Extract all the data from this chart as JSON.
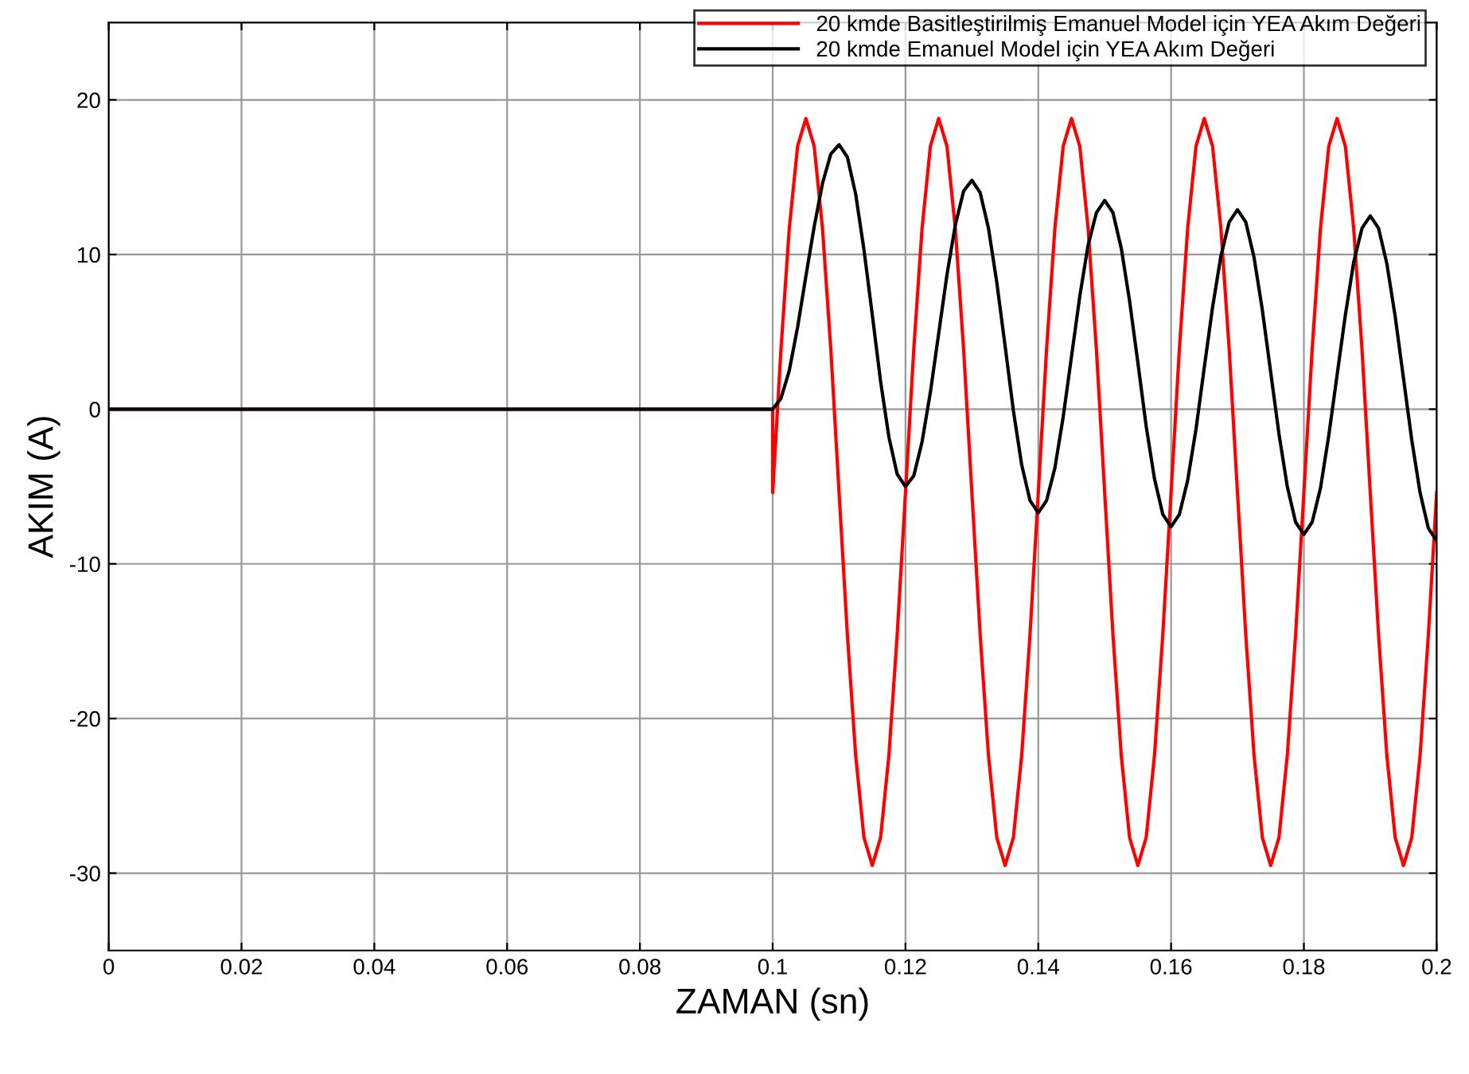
{
  "chart_data": {
    "type": "line",
    "xlabel": "ZAMAN (sn)",
    "ylabel": "AKIM (A)",
    "xlim": [
      0,
      0.2
    ],
    "ylim": [
      -35,
      25
    ],
    "xticks": [
      0,
      0.02,
      0.04,
      0.06,
      0.08,
      0.1,
      0.12,
      0.14,
      0.16,
      0.18,
      0.2
    ],
    "yticks": [
      -30,
      -20,
      -10,
      0,
      10,
      20
    ],
    "grid": true,
    "legend": "top right",
    "marker": "none",
    "line_style": "solid",
    "series": [
      {
        "name": "20 kmde Basitleştirilmiş Emanuel Model için YEA Akım Değeri",
        "color": "#ff0000",
        "x": [
          0,
          0.1,
          0.1,
          0.10125,
          0.1025,
          0.10375,
          0.105,
          0.10625,
          0.1075,
          0.10875,
          0.11,
          0.11125,
          0.1125,
          0.11375,
          0.115,
          0.11625,
          0.1175,
          0.11875,
          0.12,
          0.12125,
          0.1225,
          0.12375,
          0.125,
          0.12625,
          0.1275,
          0.12875,
          0.13,
          0.13125,
          0.1325,
          0.13375,
          0.135,
          0.13625,
          0.1375,
          0.13875,
          0.14,
          0.14125,
          0.1425,
          0.14375,
          0.145,
          0.14625,
          0.1475,
          0.14875,
          0.15,
          0.15125,
          0.1525,
          0.15375,
          0.155,
          0.15625,
          0.1575,
          0.15875,
          0.16,
          0.16125,
          0.1625,
          0.16375,
          0.165,
          0.16625,
          0.1675,
          0.16875,
          0.17,
          0.17125,
          0.1725,
          0.17375,
          0.175,
          0.17625,
          0.1775,
          0.17875,
          0.18,
          0.18125,
          0.1825,
          0.18375,
          0.185,
          0.18625,
          0.1875,
          0.18875,
          0.19,
          0.19125,
          0.1925,
          0.19375,
          0.195,
          0.19625,
          0.1975,
          0.19875,
          0.2
        ],
        "values": [
          0,
          0,
          -5.4,
          3.9,
          11.7,
          17.0,
          18.8,
          17.0,
          11.7,
          3.9,
          -5.4,
          -14.6,
          -22.4,
          -27.7,
          -29.5,
          -27.7,
          -22.4,
          -14.6,
          -5.4,
          3.9,
          11.7,
          17.0,
          18.8,
          17.0,
          11.7,
          3.9,
          -5.4,
          -14.6,
          -22.4,
          -27.7,
          -29.5,
          -27.7,
          -22.4,
          -14.6,
          -5.4,
          3.9,
          11.7,
          17.0,
          18.8,
          17.0,
          11.7,
          3.9,
          -5.4,
          -14.6,
          -22.4,
          -27.7,
          -29.5,
          -27.7,
          -22.4,
          -14.6,
          -5.4,
          3.9,
          11.7,
          17.0,
          18.8,
          17.0,
          11.7,
          3.9,
          -5.4,
          -14.6,
          -22.4,
          -27.7,
          -29.5,
          -27.7,
          -22.4,
          -14.6,
          -5.4,
          3.9,
          11.7,
          17.0,
          18.8,
          17.0,
          11.7,
          3.9,
          -5.4,
          -14.6,
          -22.4,
          -27.7,
          -29.5,
          -27.7,
          -22.4,
          -14.6,
          -5.4
        ]
      },
      {
        "name": "20 kmde Emanuel Model için YEA Akım Değeri",
        "color": "#000000",
        "x": [
          0,
          0.1,
          0.10125,
          0.1025,
          0.10375,
          0.105,
          0.10625,
          0.1075,
          0.10875,
          0.11,
          0.11125,
          0.1125,
          0.11375,
          0.115,
          0.11625,
          0.1175,
          0.11875,
          0.12,
          0.12125,
          0.1225,
          0.12375,
          0.125,
          0.12625,
          0.1275,
          0.12875,
          0.13,
          0.13125,
          0.1325,
          0.13375,
          0.135,
          0.13625,
          0.1375,
          0.13875,
          0.14,
          0.14125,
          0.1425,
          0.14375,
          0.145,
          0.14625,
          0.1475,
          0.14875,
          0.15,
          0.15125,
          0.1525,
          0.15375,
          0.155,
          0.15625,
          0.1575,
          0.15875,
          0.16,
          0.16125,
          0.1625,
          0.16375,
          0.165,
          0.16625,
          0.1675,
          0.16875,
          0.17,
          0.17125,
          0.1725,
          0.17375,
          0.175,
          0.17625,
          0.1775,
          0.17875,
          0.18,
          0.18125,
          0.1825,
          0.18375,
          0.185,
          0.18625,
          0.1875,
          0.18875,
          0.19,
          0.19125,
          0.1925,
          0.19375,
          0.195,
          0.19625,
          0.1975,
          0.19875,
          0.2
        ],
        "values": [
          0,
          0,
          0.7,
          2.5,
          5.3,
          8.6,
          11.8,
          14.6,
          16.5,
          17.1,
          16.3,
          13.9,
          10.3,
          6.1,
          1.8,
          -1.8,
          -4.2,
          -5.0,
          -4.3,
          -2.1,
          1.1,
          4.9,
          8.7,
          11.9,
          14.1,
          14.8,
          14.0,
          11.7,
          8.2,
          4.1,
          -0.1,
          -3.6,
          -5.9,
          -6.7,
          -5.9,
          -3.8,
          -0.5,
          3.4,
          7.3,
          10.6,
          12.7,
          13.5,
          12.7,
          10.4,
          7.0,
          3.0,
          -1.1,
          -4.5,
          -6.8,
          -7.6,
          -6.8,
          -4.6,
          -1.3,
          2.7,
          6.6,
          9.9,
          12.1,
          12.9,
          12.1,
          9.8,
          6.4,
          2.4,
          -1.6,
          -5.0,
          -7.3,
          -8.1,
          -7.3,
          -5.1,
          -1.7,
          2.2,
          6.1,
          9.5,
          11.7,
          12.5,
          11.7,
          9.4,
          6.0,
          2.0,
          -2.0,
          -5.4,
          -7.7,
          -8.5
        ]
      }
    ]
  }
}
